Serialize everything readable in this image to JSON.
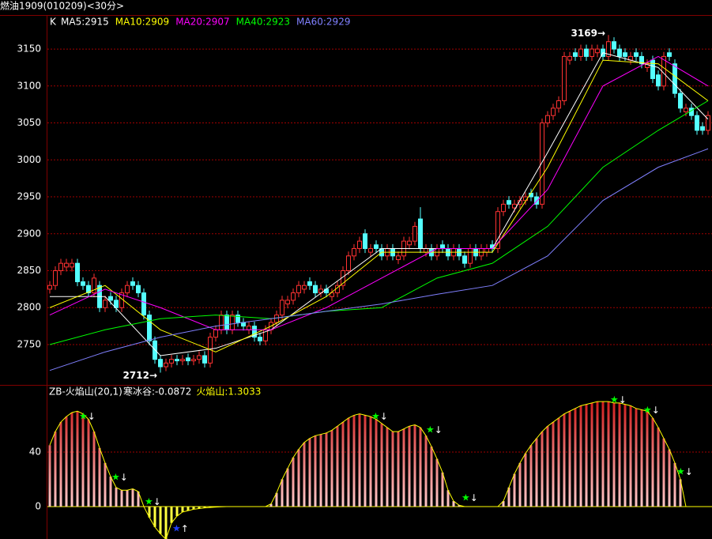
{
  "chart_data": [
    {
      "type": "candlestick",
      "title": "燃油1909(010209)<30分>",
      "label": "K",
      "open": [
        2825,
        2830,
        2850,
        2855,
        2855,
        2860,
        2835,
        2830,
        2820,
        2830,
        2800,
        2815,
        2810,
        2800,
        2820,
        2835,
        2830,
        2820,
        2790,
        2755,
        2730,
        2720,
        2725,
        2730,
        2728,
        2732,
        2728,
        2730,
        2735,
        2725,
        2760,
        2770,
        2790,
        2770,
        2790,
        2780,
        2770,
        2775,
        2760,
        2755,
        2770,
        2780,
        2790,
        2805,
        2810,
        2820,
        2825,
        2835,
        2830,
        2820,
        2825,
        2815,
        2820,
        2830,
        2850,
        2870,
        2880,
        2900,
        2875,
        2885,
        2880,
        2870,
        2880,
        2865,
        2870,
        2885,
        2890,
        2920,
        2875,
        2880,
        2870,
        2885,
        2880,
        2870,
        2880,
        2870,
        2860,
        2880,
        2870,
        2875,
        2885,
        2880,
        2930,
        2945,
        2935,
        2940,
        2945,
        2955,
        2950,
        2940,
        3050,
        3060,
        3070,
        3080,
        3135,
        3145,
        3140,
        3150,
        3140,
        3145,
        3150,
        3140,
        3160,
        3150,
        3145,
        3135,
        3145,
        3140,
        3125,
        3135,
        3115,
        3100,
        3145,
        3130,
        3090,
        3065,
        3070,
        3060,
        3045,
        3040
      ],
      "high": [
        2836,
        2856,
        2866,
        2866,
        2866,
        2866,
        2841,
        2836,
        2846,
        2836,
        2816,
        2821,
        2816,
        2826,
        2836,
        2841,
        2836,
        2826,
        2796,
        2761,
        2736,
        2731,
        2736,
        2736,
        2736,
        2738,
        2736,
        2741,
        2741,
        2766,
        2776,
        2796,
        2796,
        2796,
        2796,
        2786,
        2781,
        2781,
        2766,
        2776,
        2786,
        2796,
        2816,
        2816,
        2826,
        2836,
        2836,
        2841,
        2836,
        2831,
        2831,
        2826,
        2836,
        2856,
        2876,
        2886,
        2896,
        2906,
        2886,
        2891,
        2886,
        2886,
        2886,
        2876,
        2896,
        2896,
        2916,
        2936,
        2886,
        2886,
        2886,
        2891,
        2886,
        2886,
        2886,
        2876,
        2886,
        2886,
        2886,
        2886,
        2891,
        2936,
        2946,
        2951,
        2946,
        2951,
        2956,
        2961,
        2956,
        3056,
        3066,
        3076,
        3086,
        3146,
        3146,
        3151,
        3156,
        3156,
        3156,
        3156,
        3156,
        3169,
        3166,
        3156,
        3151,
        3146,
        3151,
        3146,
        3136,
        3141,
        3121,
        3146,
        3151,
        3136,
        3096,
        3076,
        3076,
        3066,
        3051,
        3066
      ],
      "low": [
        2819,
        2824,
        2844,
        2849,
        2849,
        2829,
        2824,
        2814,
        2814,
        2794,
        2794,
        2804,
        2794,
        2794,
        2814,
        2824,
        2814,
        2784,
        2749,
        2724,
        2712,
        2714,
        2719,
        2722,
        2722,
        2722,
        2722,
        2724,
        2719,
        2719,
        2754,
        2764,
        2764,
        2764,
        2774,
        2769,
        2764,
        2754,
        2749,
        2749,
        2764,
        2774,
        2784,
        2799,
        2804,
        2814,
        2819,
        2824,
        2814,
        2814,
        2814,
        2809,
        2814,
        2824,
        2844,
        2864,
        2874,
        2874,
        2869,
        2874,
        2864,
        2864,
        2864,
        2859,
        2864,
        2879,
        2884,
        2874,
        2869,
        2864,
        2864,
        2874,
        2864,
        2864,
        2864,
        2854,
        2854,
        2864,
        2864,
        2869,
        2874,
        2874,
        2924,
        2934,
        2929,
        2934,
        2939,
        2944,
        2934,
        2934,
        3044,
        3054,
        3064,
        3074,
        3129,
        3134,
        3134,
        3134,
        3134,
        3139,
        3134,
        3134,
        3144,
        3134,
        3134,
        3129,
        3134,
        3124,
        3119,
        3104,
        3094,
        3094,
        3134,
        3084,
        3064,
        3059,
        3054,
        3034,
        3034,
        3034
      ],
      "close": [
        2830,
        2850,
        2860,
        2860,
        2860,
        2835,
        2830,
        2820,
        2840,
        2800,
        2810,
        2810,
        2800,
        2820,
        2830,
        2830,
        2820,
        2790,
        2755,
        2730,
        2720,
        2725,
        2730,
        2728,
        2730,
        2728,
        2730,
        2735,
        2725,
        2760,
        2770,
        2790,
        2770,
        2790,
        2780,
        2775,
        2775,
        2760,
        2755,
        2770,
        2780,
        2790,
        2810,
        2810,
        2820,
        2830,
        2830,
        2830,
        2820,
        2825,
        2820,
        2820,
        2830,
        2850,
        2870,
        2880,
        2890,
        2880,
        2880,
        2880,
        2870,
        2880,
        2870,
        2870,
        2890,
        2890,
        2910,
        2880,
        2880,
        2870,
        2880,
        2880,
        2870,
        2880,
        2870,
        2860,
        2880,
        2870,
        2880,
        2880,
        2880,
        2930,
        2940,
        2940,
        2940,
        2945,
        2950,
        2950,
        2940,
        3050,
        3060,
        3070,
        3080,
        3140,
        3140,
        3140,
        3150,
        3140,
        3150,
        3150,
        3140,
        3160,
        3150,
        3140,
        3140,
        3140,
        3140,
        3130,
        3130,
        3110,
        3100,
        3140,
        3140,
        3090,
        3070,
        3070,
        3060,
        3040,
        3040,
        3060
      ],
      "ylim": [
        2696.5,
        3195
      ],
      "yticks": [
        2750,
        2800,
        2850,
        2900,
        2950,
        3000,
        3050,
        3100,
        3150
      ],
      "grid": true,
      "up_color": "#ff3232",
      "down_color": "#54ffff",
      "ma_x": [
        0,
        10,
        20,
        30,
        40,
        50,
        60,
        70,
        80,
        90,
        100,
        110,
        119
      ],
      "series": [
        {
          "name": "MA5:2915",
          "color": "#ffffff",
          "values": [
            2815,
            2815,
            2735,
            2745,
            2770,
            2825,
            2880,
            2880,
            2880,
            3010,
            3145,
            3125,
            3055
          ]
        },
        {
          "name": "MA10:2909",
          "color": "#ffff00",
          "values": [
            2800,
            2830,
            2770,
            2740,
            2775,
            2815,
            2875,
            2875,
            2875,
            2990,
            3135,
            3130,
            3080
          ]
        },
        {
          "name": "MA20:2907",
          "color": "#ff00ff",
          "values": [
            2790,
            2825,
            2800,
            2770,
            2770,
            2800,
            2840,
            2880,
            2880,
            2960,
            3100,
            3140,
            3100
          ]
        },
        {
          "name": "MA40:2923",
          "color": "#00ff00",
          "values": [
            2750,
            2770,
            2785,
            2790,
            2785,
            2795,
            2800,
            2840,
            2860,
            2910,
            2990,
            3040,
            3080
          ]
        },
        {
          "name": "MA60:2929",
          "color": "#8080ff",
          "values": [
            2715,
            2740,
            2760,
            2775,
            2785,
            2795,
            2805,
            2818,
            2830,
            2870,
            2945,
            2990,
            3015
          ]
        }
      ],
      "annotations": [
        "3169→",
        "2712→"
      ]
    },
    {
      "type": "bar",
      "title": "ZB-火焰山(20,1)",
      "legend": [
        {
          "text": "寒冰谷:-0.0872",
          "color": "#ffffff"
        },
        {
          "text": "火焰山:1.3033",
          "color": "#ffff00"
        }
      ],
      "values": [
        45,
        55,
        62,
        66,
        69,
        70,
        68,
        64,
        55,
        43,
        32,
        22,
        14,
        12,
        12,
        13,
        11,
        0,
        -8,
        -15,
        -20,
        -24,
        -12,
        -7,
        -4,
        -3,
        -2,
        -1.5,
        -1,
        -0.7,
        -0.4,
        -0.2,
        0,
        0,
        0,
        0,
        0,
        0,
        0,
        0,
        2,
        10,
        20,
        28,
        36,
        42,
        47,
        50,
        52,
        53,
        54,
        56,
        59,
        62,
        65,
        67,
        68,
        67,
        66,
        64,
        61,
        58,
        55,
        55,
        57,
        59,
        60,
        58,
        52,
        44,
        35,
        25,
        12,
        4,
        1,
        0,
        0,
        0,
        0,
        0,
        0,
        0,
        4,
        14,
        24,
        32,
        39,
        45,
        50,
        55,
        59,
        62,
        65,
        68,
        70,
        72,
        74,
        75,
        76,
        77,
        77,
        77,
        76,
        76,
        75,
        74,
        72,
        71,
        70,
        65,
        58,
        50,
        42,
        32,
        20,
        0,
        0,
        0,
        0,
        0
      ],
      "ylim": [
        -23.8,
        88.7
      ],
      "yticks": [
        0,
        40
      ],
      "color": "#e02020",
      "neg_color": "#ffff40",
      "line_color": "#ffff00"
    }
  ]
}
